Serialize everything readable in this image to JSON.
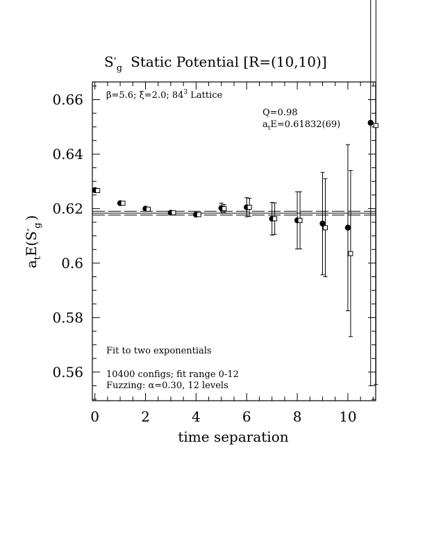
{
  "chart_data": {
    "type": "scatter",
    "title": {
      "main": "S",
      "prime": "′",
      "sub": "g",
      "rest": "Static Potential [R=(10,10)]"
    },
    "xlabel": "time separation",
    "ylabel": {
      "pre": "a",
      "sub_t": "t",
      "mid": "E(S",
      "prime": "′",
      "sub_g": "g",
      "post": ")"
    },
    "xlim": [
      -0.1,
      11.1
    ],
    "ylim": [
      0.5495,
      0.6665
    ],
    "x_ticks": [
      0,
      2,
      4,
      6,
      8,
      10
    ],
    "x_tick_labels": [
      "0",
      "2",
      "4",
      "6",
      "8",
      "10"
    ],
    "y_ticks": [
      0.56,
      0.58,
      0.6,
      0.62,
      0.64,
      0.66
    ],
    "y_tick_labels": [
      "0.56",
      "0.58",
      "0.6",
      "0.62",
      "0.64",
      "0.66"
    ],
    "grid": false,
    "series": [
      {
        "marker": "filled-circle",
        "color": "#000000",
        "points": [
          {
            "x": 0,
            "y": 0.6268,
            "err": 0.0005
          },
          {
            "x": 1,
            "y": 0.622,
            "err": 0.0005
          },
          {
            "x": 2,
            "y": 0.62,
            "err": 0.0005
          },
          {
            "x": 3,
            "y": 0.6185,
            "err": 0.0006
          },
          {
            "x": 4,
            "y": 0.6178,
            "err": 0.0008
          },
          {
            "x": 5,
            "y": 0.6202,
            "err": 0.0018
          },
          {
            "x": 6,
            "y": 0.6205,
            "err": 0.0035
          },
          {
            "x": 7,
            "y": 0.6163,
            "err": 0.006
          },
          {
            "x": 8,
            "y": 0.6157,
            "err": 0.0105
          },
          {
            "x": 9,
            "y": 0.6145,
            "err": 0.0188
          },
          {
            "x": 10,
            "y": 0.613,
            "err": 0.0305
          },
          {
            "x": 10.9,
            "y": 0.6515,
            "err": 0.0965
          }
        ]
      },
      {
        "marker": "open-square",
        "color": "#000000",
        "points": [
          {
            "x": 0,
            "y": 0.6266,
            "err": 0.0004
          },
          {
            "x": 1,
            "y": 0.622,
            "err": 0.0004
          },
          {
            "x": 2,
            "y": 0.6198,
            "err": 0.0004
          },
          {
            "x": 3,
            "y": 0.6185,
            "err": 0.0005
          },
          {
            "x": 4,
            "y": 0.6178,
            "err": 0.0006
          },
          {
            "x": 5,
            "y": 0.62,
            "err": 0.0015
          },
          {
            "x": 6,
            "y": 0.6205,
            "err": 0.0033
          },
          {
            "x": 7,
            "y": 0.6163,
            "err": 0.0058
          },
          {
            "x": 8,
            "y": 0.6157,
            "err": 0.0105
          },
          {
            "x": 9,
            "y": 0.613,
            "err": 0.018
          },
          {
            "x": 10,
            "y": 0.6035,
            "err": 0.0305
          },
          {
            "x": 11,
            "y": 0.6505,
            "err": 0.095
          }
        ]
      }
    ],
    "fit": {
      "value": 0.61832,
      "error": 0.00069,
      "range": [
        -0.1,
        11.1
      ]
    },
    "annotations": {
      "lattice": {
        "beta": "β=5.6; ",
        "xi_sym": "ξ",
        "xi_rest": "=2.0; 84",
        "sup": "3",
        "lattice_word": " Lattice"
      },
      "q": "Q=0.98",
      "energy": {
        "a": "a",
        "sub": "t",
        "rest": "E=0.61832(69)"
      },
      "fit_type": "Fit to two exponentials",
      "configs": "10400 configs; fit range 0-12",
      "fuzzing": {
        "pre": "Fuzzing: ",
        "alpha": "α",
        "post": "=0.30, 12 levels"
      }
    }
  }
}
